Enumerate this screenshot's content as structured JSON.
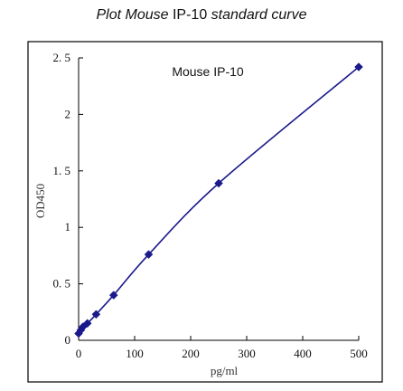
{
  "chart_title": {
    "part1": "Plot Mouse",
    "part2": "IP-10",
    "part3": "standard curve"
  },
  "chart_data": {
    "type": "scatter",
    "title": "Plot Mouse IP-10 standard curve",
    "xlabel": "pg/ml",
    "ylabel": "OD450",
    "xlim": [
      0,
      500
    ],
    "ylim": [
      0,
      2.5
    ],
    "x_ticks": [
      0,
      100,
      200,
      300,
      400,
      500
    ],
    "y_ticks": [
      0,
      0.5,
      1,
      1.5,
      2,
      2.5
    ],
    "x_tick_labels": [
      "0",
      "100",
      "200",
      "300",
      "400",
      "500"
    ],
    "y_tick_labels": [
      "0",
      "0. 5",
      "1",
      "1. 5",
      "2",
      "2. 5"
    ],
    "annotation": "Mouse IP-10",
    "grid": false,
    "series": [
      {
        "color": "#1a1a8c",
        "marker": "diamond",
        "fit_line": true,
        "points": [
          {
            "x": 0,
            "y": 0.06
          },
          {
            "x": 3.9,
            "y": 0.09
          },
          {
            "x": 7.8,
            "y": 0.12
          },
          {
            "x": 15.6,
            "y": 0.15
          },
          {
            "x": 31.25,
            "y": 0.23
          },
          {
            "x": 62.5,
            "y": 0.4
          },
          {
            "x": 125,
            "y": 0.76
          },
          {
            "x": 250,
            "y": 1.39
          },
          {
            "x": 500,
            "y": 2.42
          }
        ]
      }
    ]
  }
}
